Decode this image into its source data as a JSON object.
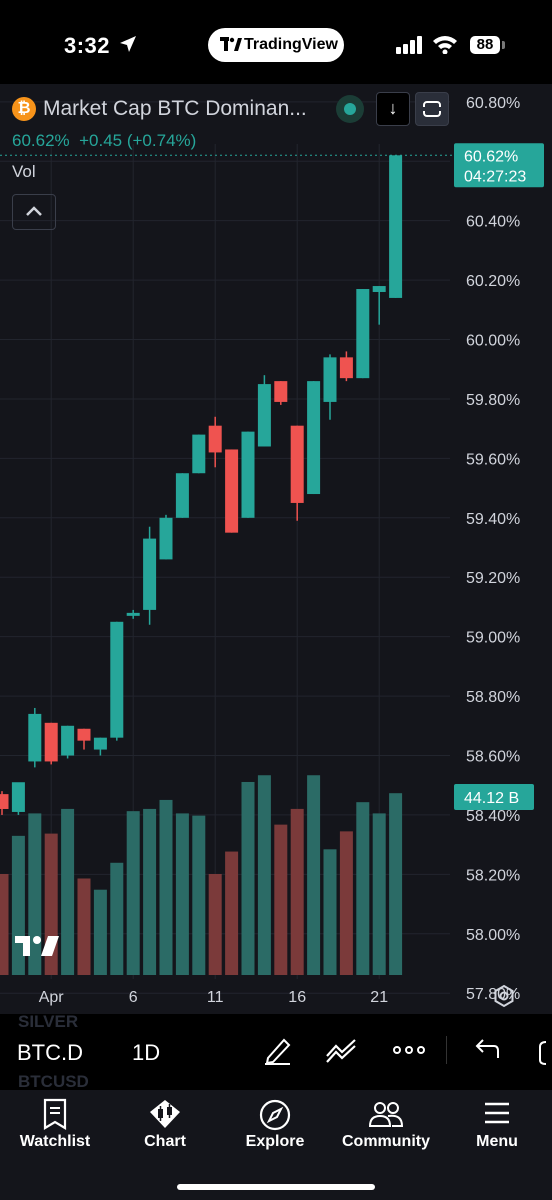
{
  "status_bar": {
    "time": "3:32",
    "app_pill": "TradingView",
    "battery": "88"
  },
  "header": {
    "symbol_title": "Market Cap BTC Dominan...",
    "symbol_icon": "₿",
    "price_line": "60.62%  +0.45 (+0.74%)",
    "vol_label": "Vol"
  },
  "chart_data": {
    "type": "candlestick",
    "symbol": "BTC.D",
    "interval": "1D",
    "x_tick_labels": [
      "Apr",
      "6",
      "11",
      "16",
      "21"
    ],
    "y_tick_labels": [
      "60.80%",
      "60.60%",
      "60.40%",
      "60.20%",
      "60.00%",
      "59.80%",
      "59.60%",
      "59.40%",
      "59.20%",
      "59.00%",
      "58.80%",
      "58.60%",
      "58.40%",
      "58.20%",
      "58.00%",
      "57.80%"
    ],
    "ylim": [
      57.73,
      60.86
    ],
    "grid": true,
    "current_price_label": "60.62%",
    "countdown_label": "04:27:23",
    "volume_label": "44.12 B",
    "colors": {
      "up": "#26a69a",
      "down": "#ef5350",
      "vol_up": "#2b6b66",
      "vol_down": "#7b3a3a",
      "bg": "#14151b",
      "grid": "#22252e"
    },
    "candles": [
      {
        "o": 58.47,
        "h": 58.48,
        "l": 58.4,
        "c": 58.42,
        "v": 0.45
      },
      {
        "o": 58.41,
        "h": 58.5,
        "l": 58.4,
        "c": 58.51,
        "v": 0.62
      },
      {
        "o": 58.58,
        "h": 58.76,
        "l": 58.56,
        "c": 58.74,
        "v": 0.72
      },
      {
        "o": 58.71,
        "h": 58.71,
        "l": 58.57,
        "c": 58.58,
        "v": 0.63
      },
      {
        "o": 58.6,
        "h": 58.7,
        "l": 58.59,
        "c": 58.7,
        "v": 0.74
      },
      {
        "o": 58.69,
        "h": 58.69,
        "l": 58.62,
        "c": 58.65,
        "v": 0.43
      },
      {
        "o": 58.62,
        "h": 58.66,
        "l": 58.6,
        "c": 58.66,
        "v": 0.38
      },
      {
        "o": 58.66,
        "h": 59.05,
        "l": 58.65,
        "c": 59.05,
        "v": 0.5
      },
      {
        "o": 59.07,
        "h": 59.09,
        "l": 59.06,
        "c": 59.08,
        "v": 0.73
      },
      {
        "o": 59.09,
        "h": 59.37,
        "l": 59.04,
        "c": 59.33,
        "v": 0.74
      },
      {
        "o": 59.26,
        "h": 59.41,
        "l": 59.26,
        "c": 59.4,
        "v": 0.78
      },
      {
        "o": 59.4,
        "h": 59.55,
        "l": 59.4,
        "c": 59.55,
        "v": 0.72
      },
      {
        "o": 59.55,
        "h": 59.68,
        "l": 59.55,
        "c": 59.68,
        "v": 0.71
      },
      {
        "o": 59.71,
        "h": 59.74,
        "l": 59.57,
        "c": 59.62,
        "v": 0.45
      },
      {
        "o": 59.63,
        "h": 59.63,
        "l": 59.35,
        "c": 59.35,
        "v": 0.55
      },
      {
        "o": 59.4,
        "h": 59.69,
        "l": 59.4,
        "c": 59.69,
        "v": 0.86
      },
      {
        "o": 59.64,
        "h": 59.88,
        "l": 59.64,
        "c": 59.85,
        "v": 0.89
      },
      {
        "o": 59.86,
        "h": 59.86,
        "l": 59.78,
        "c": 59.79,
        "v": 0.67
      },
      {
        "o": 59.71,
        "h": 59.71,
        "l": 59.39,
        "c": 59.45,
        "v": 0.74
      },
      {
        "o": 59.48,
        "h": 59.86,
        "l": 59.48,
        "c": 59.86,
        "v": 0.89
      },
      {
        "o": 59.79,
        "h": 59.95,
        "l": 59.73,
        "c": 59.94,
        "v": 0.56
      },
      {
        "o": 59.94,
        "h": 59.96,
        "l": 59.86,
        "c": 59.87,
        "v": 0.64
      },
      {
        "o": 59.87,
        "h": 60.17,
        "l": 59.87,
        "c": 60.17,
        "v": 0.77
      },
      {
        "o": 60.16,
        "h": 60.18,
        "l": 60.05,
        "c": 60.18,
        "v": 0.72
      },
      {
        "o": 60.14,
        "h": 60.62,
        "l": 60.14,
        "c": 60.62,
        "v": 0.81
      }
    ]
  },
  "toolbar": {
    "ghost_symbol_1": "SILVER",
    "ghost_symbol_2": "BTCUSD",
    "ticker": "BTC.D",
    "interval": "1D"
  },
  "tabs": [
    {
      "label": "Watchlist",
      "icon": "watchlist-icon"
    },
    {
      "label": "Chart",
      "icon": "chart-icon"
    },
    {
      "label": "Explore",
      "icon": "compass-icon"
    },
    {
      "label": "Community",
      "icon": "community-icon"
    },
    {
      "label": "Menu",
      "icon": "menu-icon"
    }
  ]
}
